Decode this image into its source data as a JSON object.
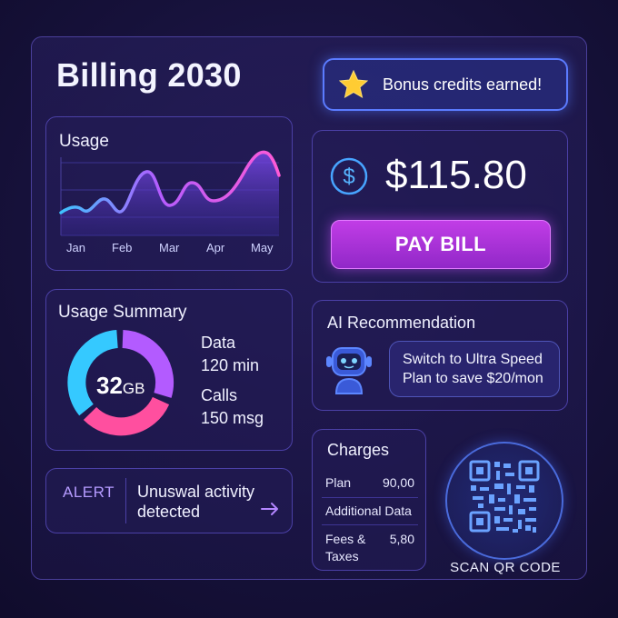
{
  "app": {
    "title": "Billing 2030"
  },
  "bonus": {
    "text": "Bonus credits earned!",
    "icon": "star-icon"
  },
  "usage": {
    "title": "Usage",
    "months": [
      "Jan",
      "Feb",
      "Mar",
      "Apr",
      "May"
    ]
  },
  "chart_data": {
    "type": "area",
    "categories": [
      "Jan",
      "Feb",
      "Mar",
      "Apr",
      "May"
    ],
    "title": "Usage",
    "grid": true,
    "colors": [
      "#3ec3ff",
      "#b45cff",
      "#ff5ad6"
    ]
  },
  "bill": {
    "amount": "$115.80",
    "pay_label": "PAY BILL",
    "icon": "dollar-icon"
  },
  "summary": {
    "title": "Usage Summary",
    "donut_value": "32",
    "donut_unit": "GB",
    "data_label": "Data",
    "data_minutes": "120 min",
    "calls_label": "Calls",
    "calls_msgs": "150 msg",
    "segment_colors": [
      "#b35bff",
      "#ff4fa0",
      "#3ad0ff"
    ]
  },
  "ai": {
    "title": "AI Recommendation",
    "line1": "Switch to Ultra Speed",
    "line2": "Plan to save $20/mon",
    "icon": "robot-icon"
  },
  "alert": {
    "label": "ALERT",
    "line1": "Unuswal activity",
    "line2": "detected",
    "icon": "arrow-right-icon"
  },
  "charges": {
    "title": "Charges",
    "plan_label": "Plan",
    "plan_value": "90,00",
    "additional_label": "Additional Data",
    "fees_label_1": "Fees &",
    "fees_label_2": "Taxes",
    "fees_value": "5,80"
  },
  "qr": {
    "label": "SCAN QR CODE",
    "icon": "qr-code-icon"
  }
}
